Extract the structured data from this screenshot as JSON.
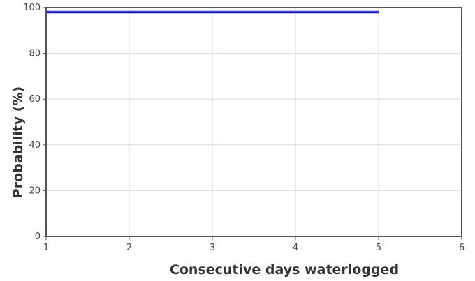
{
  "chart_data": {
    "type": "line",
    "title": "",
    "xlabel": "Consecutive days waterlogged",
    "ylabel": "Probability (%)",
    "xlim": [
      1,
      6
    ],
    "ylim": [
      0,
      100
    ],
    "x_ticks": [
      1,
      2,
      3,
      4,
      5,
      6
    ],
    "y_ticks": [
      0,
      20,
      40,
      60,
      80,
      100
    ],
    "grid": true,
    "legend": "none",
    "series": [
      {
        "color": "#1a1ab8",
        "x": [
          1,
          2,
          3,
          4,
          5
        ],
        "y": [
          98,
          98,
          98,
          98,
          98
        ]
      }
    ]
  }
}
